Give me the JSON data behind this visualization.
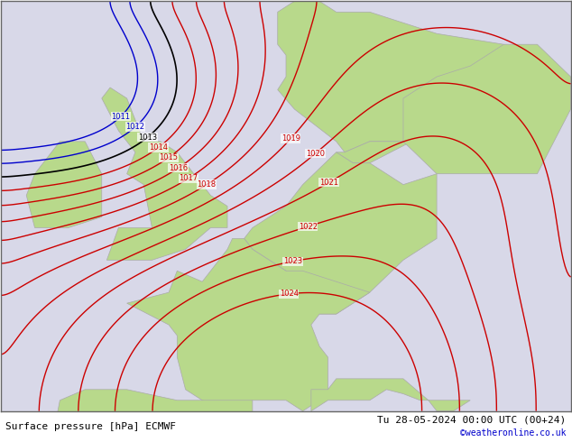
{
  "title_left": "Surface pressure [hPa] ECMWF",
  "title_right": "Tu 28-05-2024 00:00 UTC (00+24)",
  "credit": "©weatheronline.co.uk",
  "bg_map_color": "#d4eaaf",
  "bg_sea_color": "#d8d8e8",
  "border_color": "#aaaaaa",
  "land_color": "#b8d98b",
  "sea_color": "#c8cce0",
  "isobar_color_red": "#cc0000",
  "isobar_color_blue": "#0000cc",
  "isobar_color_black": "#000000",
  "label_fontsize": 7,
  "title_fontsize": 8,
  "credit_fontsize": 7,
  "credit_color": "#0000cc",
  "figsize": [
    6.34,
    4.9
  ],
  "dpi": 100
}
